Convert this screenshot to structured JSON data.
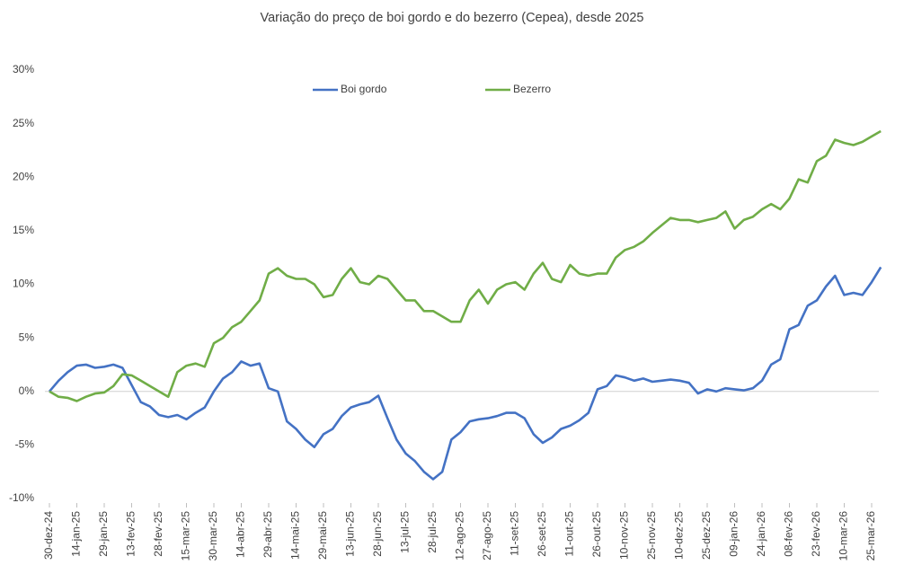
{
  "chart_data": {
    "type": "line",
    "title": "Variação do preço de boi gordo  e do bezerro (Cepea), desde 2025",
    "categories": [
      "30-dez-24",
      null,
      null,
      "14-jan-25",
      null,
      null,
      "29-jan-25",
      null,
      null,
      "13-fev-25",
      null,
      null,
      "28-fev-25",
      null,
      null,
      "15-mar-25",
      null,
      null,
      "30-mar-25",
      null,
      null,
      "14-abr-25",
      null,
      null,
      "29-abr-25",
      null,
      null,
      "14-mai-25",
      null,
      null,
      "29-mai-25",
      null,
      null,
      "13-jun-25",
      null,
      null,
      "28-jun-25",
      null,
      null,
      "13-jul-25",
      null,
      null,
      "28-jul-25",
      null,
      null,
      "12-ago-25",
      null,
      null,
      "27-ago-25",
      null,
      null,
      "11-set-25",
      null,
      null,
      "26-set-25",
      null,
      null,
      "11-out-25",
      null,
      null,
      "26-out-25",
      null,
      null,
      "10-nov-25",
      null,
      null,
      "25-nov-25",
      null,
      null,
      "10-dez-25",
      null,
      null,
      "25-dez-25",
      null,
      null,
      "09-jan-26",
      null,
      null,
      "24-jan-26",
      null,
      null,
      "08-fev-26",
      null,
      null,
      "23-fev-26",
      null,
      null,
      "10-mar-26",
      null,
      null,
      "25-mar-26",
      null
    ],
    "series": [
      {
        "name": "Boi gordo",
        "color": "#4472c4",
        "values": [
          0,
          1.0,
          1.8,
          2.4,
          2.5,
          2.2,
          2.3,
          2.5,
          2.2,
          0.6,
          -1.0,
          -1.4,
          -2.2,
          -2.4,
          -2.2,
          -2.6,
          -2.0,
          -1.5,
          0,
          1.2,
          1.8,
          2.8,
          2.4,
          2.6,
          0.3,
          0,
          -2.8,
          -3.5,
          -4.5,
          -5.2,
          -4.0,
          -3.5,
          -2.3,
          -1.5,
          -1.2,
          -1.0,
          -0.4,
          -2.5,
          -4.5,
          -5.8,
          -6.5,
          -7.5,
          -8.2,
          -7.5,
          -4.5,
          -3.8,
          -2.8,
          -2.6,
          -2.5,
          -2.3,
          -2.0,
          -2.0,
          -2.5,
          -4.0,
          -4.8,
          -4.3,
          -3.5,
          -3.2,
          -2.7,
          -2.0,
          0.2,
          0.5,
          1.5,
          1.3,
          1.0,
          1.2,
          0.9,
          1.0,
          1.1,
          1.0,
          0.8,
          -0.2,
          0.2,
          0.0,
          0.3,
          0.2,
          0.1,
          0.3,
          1.0,
          2.5,
          3.0,
          5.8,
          6.2,
          8.0,
          8.5,
          9.8,
          10.8,
          9.0,
          9.2,
          9.0,
          10.2,
          11.6
        ]
      },
      {
        "name": "Bezerro",
        "color": "#70ad47",
        "values": [
          0,
          -0.5,
          -0.6,
          -0.9,
          -0.5,
          -0.2,
          -0.1,
          0.5,
          1.6,
          1.5,
          1.0,
          0.5,
          0,
          -0.5,
          1.8,
          2.4,
          2.6,
          2.3,
          4.5,
          5.0,
          6.0,
          6.5,
          7.5,
          8.5,
          11.0,
          11.5,
          10.8,
          10.5,
          10.5,
          10.0,
          8.8,
          9.0,
          10.5,
          11.5,
          10.2,
          10.0,
          10.8,
          10.5,
          9.5,
          8.5,
          8.5,
          7.5,
          7.5,
          7.0,
          6.5,
          6.5,
          8.5,
          9.5,
          8.2,
          9.5,
          10.0,
          10.2,
          9.5,
          11.0,
          12.0,
          10.5,
          10.2,
          11.8,
          11.0,
          10.8,
          11.0,
          11.0,
          12.5,
          13.2,
          13.5,
          14.0,
          14.8,
          15.5,
          16.2,
          16.0,
          16.0,
          15.8,
          16.0,
          16.2,
          16.8,
          15.2,
          16.0,
          16.3,
          17.0,
          17.5,
          17.0,
          18.0,
          19.8,
          19.5,
          21.5,
          22.0,
          23.5,
          23.2,
          23.0,
          23.3,
          23.8,
          24.3
        ]
      }
    ],
    "ylim": [
      -10,
      30
    ],
    "yticks": [
      {
        "value": -10,
        "label": "-10%"
      },
      {
        "value": -5,
        "label": "-5%"
      },
      {
        "value": 0,
        "label": "0%"
      },
      {
        "value": 5,
        "label": "5%"
      },
      {
        "value": 10,
        "label": "10%"
      },
      {
        "value": 15,
        "label": "15%"
      },
      {
        "value": 20,
        "label": "20%"
      },
      {
        "value": 25,
        "label": "25%"
      },
      {
        "value": 30,
        "label": "30%"
      }
    ],
    "legend": "top"
  }
}
